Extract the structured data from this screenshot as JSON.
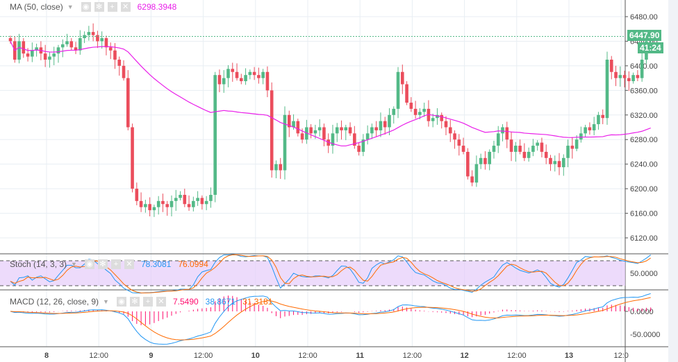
{
  "indicators": {
    "ma": {
      "label": "MA (50, close)",
      "value": "6298.3948",
      "color": "#e91ee9"
    },
    "stoch": {
      "label": "Stoch (14, 3, 3)",
      "k_value": "78.3081",
      "d_value": "76.0994",
      "k_color": "#2196f3",
      "d_color": "#ff6a00"
    },
    "macd": {
      "label": "MACD (12, 26, close, 9)",
      "hist_value": "7.5490",
      "macd_value": "38.8671",
      "signal_value": "31.3181",
      "hist_color": "#ff0f6f",
      "macd_color": "#2196f3",
      "signal_color": "#ff6a00"
    }
  },
  "legend_buttons": [
    "eye-icon",
    "gear-icon",
    "plus-icon",
    "close-icon"
  ],
  "current_price": "6447.90",
  "countdown": "41:24",
  "colors": {
    "up": "#53b987",
    "down": "#eb4d5c"
  },
  "chart_data": {
    "type": "candlestick",
    "interval_hours": 1,
    "price_axis": {
      "ticks": [
        "6480.00",
        "6440.00",
        "6400.00",
        "6360.00",
        "6320.00",
        "6280.00",
        "6240.00",
        "6200.00",
        "6160.00",
        "6120.00"
      ],
      "range": [
        6100,
        6500
      ]
    },
    "stoch_axis": {
      "ticks": [
        "50.0000"
      ]
    },
    "macd_axis": {
      "ticks": [
        "0.0000",
        "-50.0000"
      ]
    },
    "time_ticks": [
      "8",
      "12:00",
      "9",
      "12:00",
      "10",
      "12:00",
      "11",
      "12:00",
      "12",
      "12:00",
      "13",
      "12:0"
    ],
    "closes": [
      6440,
      6410,
      6440,
      6420,
      6415,
      6425,
      6430,
      6420,
      6410,
      6415,
      6420,
      6430,
      6435,
      6440,
      6430,
      6425,
      6445,
      6450,
      6455,
      6450,
      6440,
      6445,
      6430,
      6425,
      6410,
      6400,
      6380,
      6300,
      6200,
      6180,
      6170,
      6175,
      6165,
      6170,
      6180,
      6175,
      6170,
      6180,
      6185,
      6190,
      6175,
      6170,
      6180,
      6185,
      6175,
      6180,
      6190,
      6385,
      6370,
      6380,
      6395,
      6390,
      6380,
      6375,
      6385,
      6390,
      6385,
      6380,
      6390,
      6360,
      6230,
      6240,
      6230,
      6320,
      6300,
      6310,
      6290,
      6280,
      6300,
      6290,
      6295,
      6300,
      6280,
      6270,
      6290,
      6300,
      6295,
      6300,
      6290,
      6270,
      6260,
      6280,
      6290,
      6300,
      6295,
      6310,
      6300,
      6320,
      6330,
      6390,
      6370,
      6340,
      6330,
      6320,
      6325,
      6330,
      6310,
      6315,
      6320,
      6310,
      6300,
      6290,
      6280,
      6270,
      6260,
      6220,
      6210,
      6240,
      6250,
      6240,
      6260,
      6270,
      6290,
      6300,
      6280,
      6260,
      6270,
      6260,
      6250,
      6260,
      6270,
      6275,
      6260,
      6250,
      6240,
      6245,
      6235,
      6250,
      6270,
      6265,
      6280,
      6290,
      6300,
      6295,
      6305,
      6320,
      6315,
      6410,
      6390,
      6380,
      6385,
      6380,
      6375,
      6385,
      6380,
      6410,
      6440,
      6448
    ]
  }
}
